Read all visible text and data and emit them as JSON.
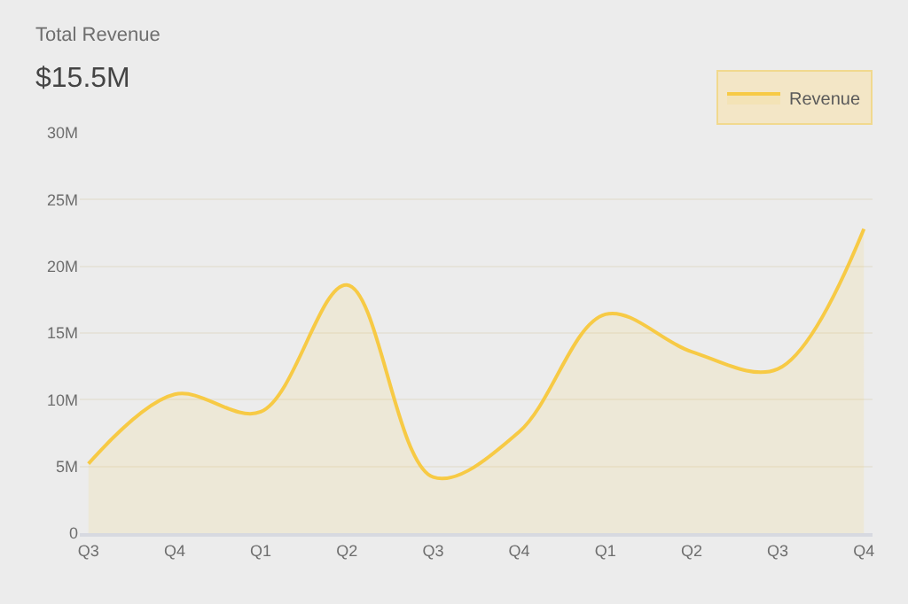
{
  "chart_data": {
    "type": "area",
    "title": "Total Revenue",
    "subtitle": "$15.5M",
    "categories": [
      "Q3",
      "Q4",
      "Q1",
      "Q2",
      "Q3",
      "Q4",
      "Q1",
      "Q2",
      "Q3",
      "Q4"
    ],
    "series": [
      {
        "name": "Revenue",
        "color": "#f7ca45",
        "values": [
          5.2,
          10.4,
          9.1,
          18.6,
          4.2,
          7.6,
          16.4,
          13.6,
          12.3,
          22.8
        ]
      }
    ],
    "ylim": [
      0,
      30
    ],
    "yticks": [
      0,
      {
        "value": 5,
        "label": "5M"
      },
      {
        "value": 10,
        "label": "10M"
      },
      {
        "value": 15,
        "label": "15M"
      },
      {
        "value": 20,
        "label": "20M"
      },
      {
        "value": 25,
        "label": "25M"
      },
      {
        "value": 30,
        "label": "30M"
      }
    ],
    "grid": "y",
    "legend": "top right",
    "marker": "none",
    "line_style": "solid"
  }
}
